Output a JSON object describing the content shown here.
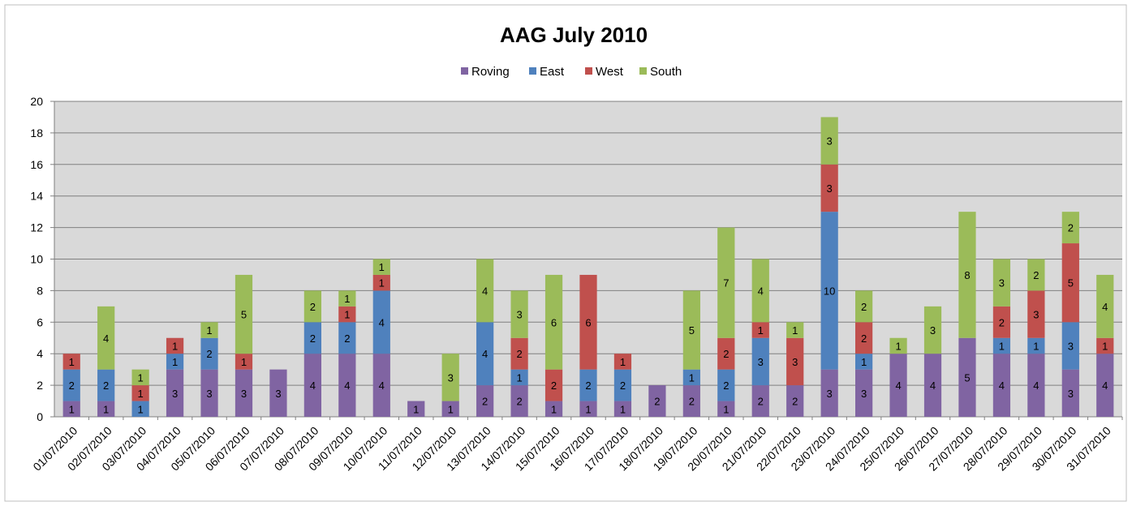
{
  "chart_data": {
    "type": "bar",
    "stacked": true,
    "title": "AAG July 2010",
    "xlabel": "",
    "ylabel": "",
    "ylim": [
      0,
      20
    ],
    "yticks": [
      0,
      2,
      4,
      6,
      8,
      10,
      12,
      14,
      16,
      18,
      20
    ],
    "grid": true,
    "legend_position": "top",
    "categories": [
      "01/07/2010",
      "02/07/2010",
      "03/07/2010",
      "04/07/2010",
      "05/07/2010",
      "06/07/2010",
      "07/07/2010",
      "08/07/2010",
      "09/07/2010",
      "10/07/2010",
      "11/07/2010",
      "12/07/2010",
      "13/07/2010",
      "14/07/2010",
      "15/07/2010",
      "16/07/2010",
      "17/07/2010",
      "18/07/2010",
      "19/07/2010",
      "20/07/2010",
      "21/07/2010",
      "22/07/2010",
      "23/07/2010",
      "24/07/2010",
      "25/07/2010",
      "26/07/2010",
      "27/07/2010",
      "28/07/2010",
      "29/07/2010",
      "30/07/2010",
      "31/07/2010"
    ],
    "series": [
      {
        "name": "Roving",
        "color": "#8064a2",
        "values": [
          1,
          1,
          0,
          3,
          3,
          3,
          3,
          4,
          4,
          4,
          1,
          1,
          2,
          2,
          1,
          1,
          1,
          2,
          2,
          1,
          2,
          2,
          3,
          3,
          4,
          4,
          5,
          4,
          4,
          3,
          4
        ]
      },
      {
        "name": "East",
        "color": "#4f81bd",
        "values": [
          2,
          2,
          1,
          1,
          2,
          0,
          0,
          2,
          2,
          4,
          0,
          0,
          4,
          1,
          0,
          2,
          2,
          0,
          1,
          2,
          3,
          0,
          10,
          1,
          0,
          0,
          0,
          1,
          1,
          3,
          0
        ]
      },
      {
        "name": "West",
        "color": "#c0504d",
        "values": [
          1,
          0,
          1,
          1,
          0,
          1,
          0,
          0,
          1,
          1,
          0,
          0,
          0,
          2,
          2,
          6,
          1,
          0,
          0,
          2,
          1,
          3,
          3,
          2,
          0,
          0,
          0,
          2,
          3,
          5,
          1
        ]
      },
      {
        "name": "South",
        "color": "#9bbb59",
        "values": [
          0,
          4,
          1,
          0,
          1,
          5,
          0,
          2,
          1,
          1,
          0,
          3,
          4,
          3,
          6,
          0,
          0,
          0,
          5,
          7,
          4,
          1,
          3,
          2,
          1,
          3,
          8,
          3,
          2,
          2,
          4
        ]
      }
    ],
    "plot_background": "#d9d9d9",
    "gridline_color": "#808080"
  }
}
